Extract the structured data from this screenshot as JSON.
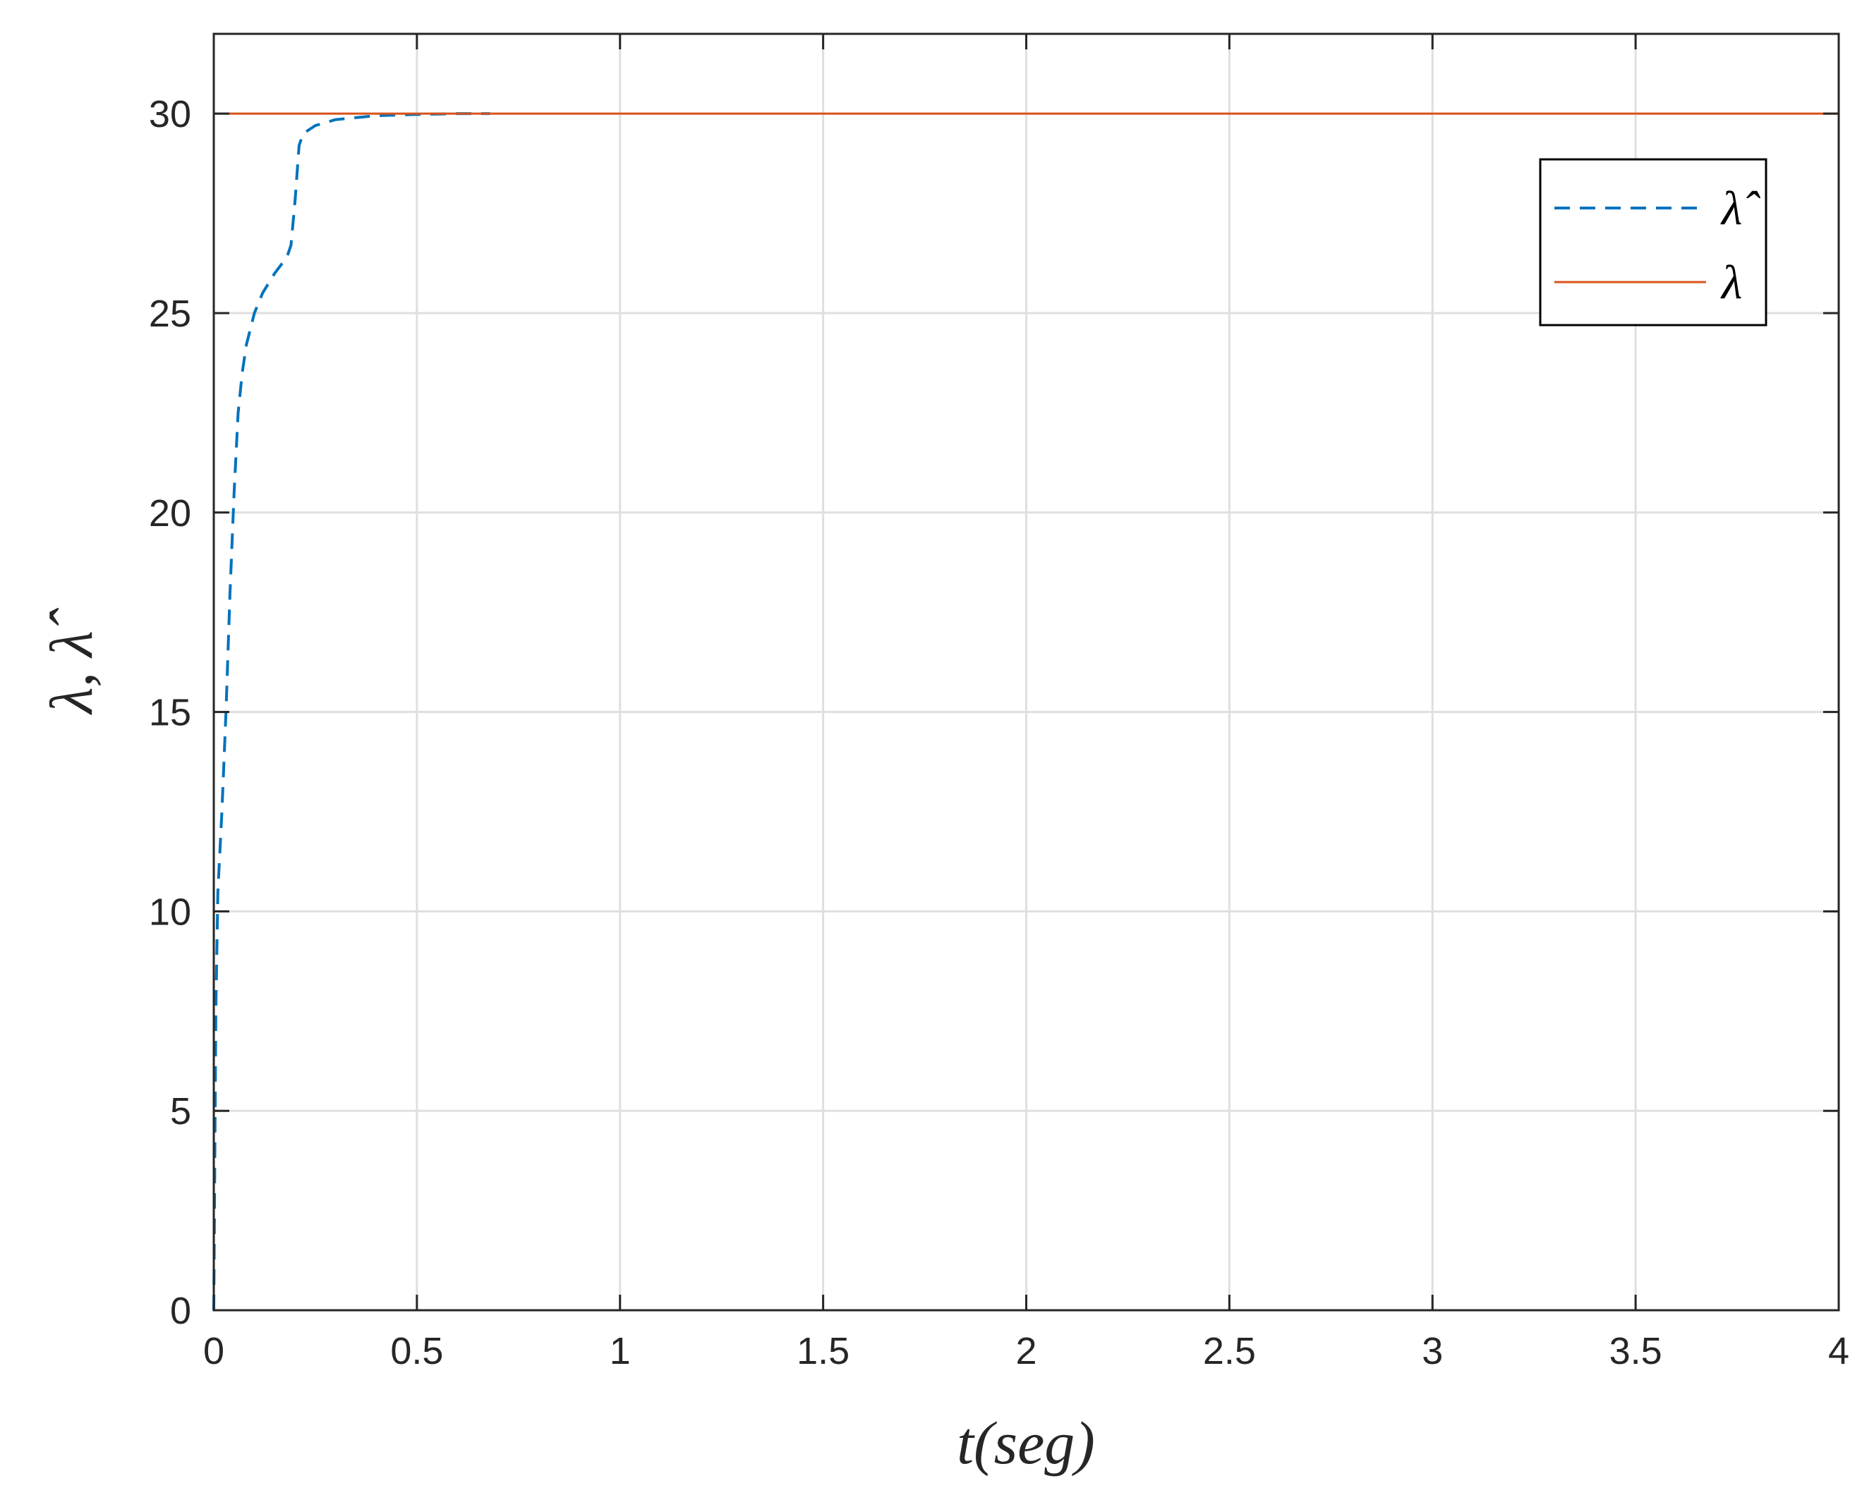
{
  "colors": {
    "estimate": "#0072BD",
    "true_value": "#D95319",
    "grid": "#DFDFDF",
    "axis": "#262626"
  },
  "chart_data": {
    "type": "line",
    "xlabel": "t(seg)",
    "ylabel": "λ, λ̂",
    "xlim": [
      0,
      4
    ],
    "ylim": [
      0,
      32
    ],
    "xticks": [
      0,
      0.5,
      1,
      1.5,
      2,
      2.5,
      3,
      3.5,
      4
    ],
    "xtick_labels": [
      "0",
      "0.5",
      "1",
      "1.5",
      "2",
      "2.5",
      "3",
      "3.5",
      "4"
    ],
    "yticks": [
      0,
      5,
      10,
      15,
      20,
      25,
      30
    ],
    "ytick_labels": [
      "0",
      "5",
      "10",
      "15",
      "20",
      "25",
      "30"
    ],
    "grid": true,
    "legend_position": "top-right",
    "series": [
      {
        "name": "λ̂",
        "style": "dashed",
        "color": "#0072BD",
        "x": [
          0,
          0.005,
          0.01,
          0.02,
          0.03,
          0.04,
          0.05,
          0.06,
          0.07,
          0.08,
          0.1,
          0.12,
          0.15,
          0.18,
          0.19,
          0.2,
          0.21,
          0.22,
          0.25,
          0.3,
          0.35,
          0.4,
          0.5,
          0.6,
          0.68
        ],
        "y": [
          0,
          7.5,
          10.5,
          12.5,
          15,
          18,
          20.5,
          22.5,
          23.5,
          24.2,
          25,
          25.5,
          26,
          26.4,
          26.7,
          27.8,
          29.2,
          29.5,
          29.7,
          29.85,
          29.9,
          29.95,
          29.98,
          30,
          30
        ]
      },
      {
        "name": "λ",
        "style": "solid",
        "color": "#D95319",
        "x": [
          0,
          4
        ],
        "y": [
          30,
          30
        ]
      }
    ]
  }
}
